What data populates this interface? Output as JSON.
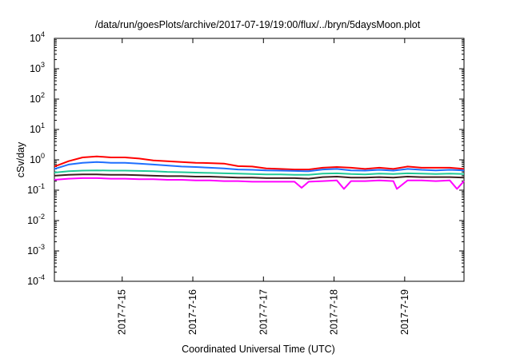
{
  "chart_data": {
    "type": "line",
    "title": "/data/run/goesPlots/archive/2017-07-19/19:00/flux/../bryn/5daysMoon.plot",
    "xlabel": "Coordinated Universal Time (UTC)",
    "ylabel": "cSv/day",
    "yscale": "log",
    "ylim": [
      0.0001,
      10000
    ],
    "xlim": [
      0,
      5.8
    ],
    "grid": false,
    "legend": "none",
    "y_ticks": [
      {
        "value": 0.0001,
        "base": "10",
        "exp": "-4"
      },
      {
        "value": 0.001,
        "base": "10",
        "exp": "-3"
      },
      {
        "value": 0.01,
        "base": "10",
        "exp": "-2"
      },
      {
        "value": 0.1,
        "base": "10",
        "exp": "-1"
      },
      {
        "value": 1,
        "base": "10",
        "exp": "0"
      },
      {
        "value": 10,
        "base": "10",
        "exp": "1"
      },
      {
        "value": 100,
        "base": "10",
        "exp": "2"
      },
      {
        "value": 1000,
        "base": "10",
        "exp": "3"
      },
      {
        "value": 10000,
        "base": "10",
        "exp": "4"
      }
    ],
    "x_ticks": [
      {
        "value": 0.96,
        "label": "2017-7-15"
      },
      {
        "value": 1.96,
        "label": "2017-7-16"
      },
      {
        "value": 2.96,
        "label": "2017-7-17"
      },
      {
        "value": 3.96,
        "label": "2017-7-18"
      },
      {
        "value": 4.96,
        "label": "2017-7-19"
      }
    ],
    "series": [
      {
        "color": "#ff0000",
        "x": [
          0,
          0.2,
          0.4,
          0.6,
          0.8,
          1.0,
          1.2,
          1.4,
          1.6,
          1.8,
          2.0,
          2.2,
          2.4,
          2.6,
          2.8,
          3.0,
          3.2,
          3.4,
          3.6,
          3.8,
          4.0,
          4.2,
          4.4,
          4.6,
          4.8,
          5.0,
          5.2,
          5.4,
          5.6,
          5.8
        ],
        "values": [
          0.6,
          0.9,
          1.2,
          1.3,
          1.2,
          1.2,
          1.1,
          0.95,
          0.9,
          0.85,
          0.8,
          0.78,
          0.75,
          0.62,
          0.6,
          0.52,
          0.5,
          0.48,
          0.48,
          0.55,
          0.58,
          0.55,
          0.5,
          0.55,
          0.5,
          0.6,
          0.55,
          0.55,
          0.55,
          0.5
        ]
      },
      {
        "color": "#1e6fff",
        "x": [
          0,
          0.2,
          0.4,
          0.6,
          0.8,
          1.0,
          1.2,
          1.4,
          1.6,
          1.8,
          2.0,
          2.2,
          2.4,
          2.6,
          2.8,
          3.0,
          3.2,
          3.4,
          3.6,
          3.8,
          4.0,
          4.2,
          4.4,
          4.6,
          4.8,
          5.0,
          5.2,
          5.4,
          5.6,
          5.8
        ],
        "values": [
          0.5,
          0.7,
          0.8,
          0.85,
          0.8,
          0.8,
          0.75,
          0.7,
          0.65,
          0.6,
          0.58,
          0.55,
          0.52,
          0.48,
          0.47,
          0.45,
          0.44,
          0.43,
          0.42,
          0.48,
          0.5,
          0.45,
          0.44,
          0.47,
          0.44,
          0.5,
          0.47,
          0.45,
          0.47,
          0.45
        ]
      },
      {
        "color": "#20c997",
        "x": [
          0,
          0.2,
          0.4,
          0.6,
          0.8,
          1.0,
          1.2,
          1.4,
          1.6,
          1.8,
          2.0,
          2.2,
          2.4,
          2.6,
          2.8,
          3.0,
          3.2,
          3.4,
          3.6,
          3.8,
          4.0,
          4.2,
          4.4,
          4.6,
          4.8,
          5.0,
          5.2,
          5.4,
          5.6,
          5.8
        ],
        "values": [
          0.38,
          0.42,
          0.44,
          0.45,
          0.44,
          0.44,
          0.43,
          0.42,
          0.4,
          0.39,
          0.38,
          0.37,
          0.36,
          0.35,
          0.34,
          0.33,
          0.33,
          0.32,
          0.32,
          0.35,
          0.36,
          0.34,
          0.33,
          0.35,
          0.34,
          0.36,
          0.35,
          0.34,
          0.35,
          0.34
        ]
      },
      {
        "color": "#3a1f1f",
        "x": [
          0,
          0.2,
          0.4,
          0.6,
          0.8,
          1.0,
          1.2,
          1.4,
          1.6,
          1.8,
          2.0,
          2.2,
          2.4,
          2.6,
          2.8,
          3.0,
          3.2,
          3.4,
          3.6,
          3.8,
          4.0,
          4.2,
          4.4,
          4.6,
          4.8,
          5.0,
          5.2,
          5.4,
          5.6,
          5.8
        ],
        "values": [
          0.3,
          0.32,
          0.33,
          0.33,
          0.32,
          0.32,
          0.31,
          0.3,
          0.29,
          0.29,
          0.28,
          0.28,
          0.27,
          0.26,
          0.26,
          0.25,
          0.25,
          0.25,
          0.24,
          0.27,
          0.28,
          0.26,
          0.26,
          0.27,
          0.26,
          0.28,
          0.27,
          0.27,
          0.27,
          0.26
        ]
      },
      {
        "color": "#ff00ff",
        "x": [
          0,
          0.2,
          0.4,
          0.6,
          0.8,
          1.0,
          1.2,
          1.4,
          1.6,
          1.8,
          2.0,
          2.2,
          2.4,
          2.6,
          2.8,
          3.0,
          3.2,
          3.4,
          3.5,
          3.6,
          3.8,
          4.0,
          4.1,
          4.2,
          4.4,
          4.6,
          4.8,
          4.85,
          5.0,
          5.2,
          5.4,
          5.6,
          5.7,
          5.8
        ],
        "values": [
          0.22,
          0.24,
          0.25,
          0.25,
          0.24,
          0.24,
          0.23,
          0.23,
          0.22,
          0.22,
          0.21,
          0.21,
          0.2,
          0.2,
          0.19,
          0.19,
          0.19,
          0.19,
          0.12,
          0.19,
          0.2,
          0.21,
          0.11,
          0.2,
          0.2,
          0.21,
          0.2,
          0.11,
          0.21,
          0.21,
          0.2,
          0.21,
          0.11,
          0.2
        ]
      }
    ]
  }
}
